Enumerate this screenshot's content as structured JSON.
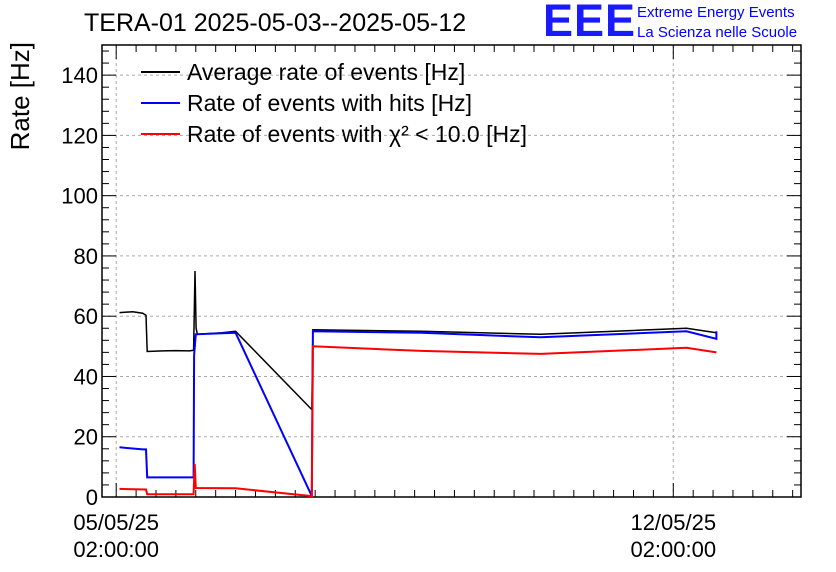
{
  "header": {
    "title": "TERA-01 2025-05-03--2025-05-12",
    "logo_text": "EEE",
    "logo_line1": "Extreme Energy Events",
    "logo_line2": "La Scienza nelle Scuole"
  },
  "chart_data": {
    "type": "line",
    "ylabel": "Rate [Hz]",
    "ylim": [
      0,
      150
    ],
    "yticks": [
      0,
      20,
      40,
      60,
      80,
      100,
      120,
      140
    ],
    "xlim": [
      "2025-05-04 21:43",
      "2025-05-13 16:31"
    ],
    "xticks": [
      {
        "date": "2025-05-05 02:00",
        "line1": "05/05/25",
        "line2": "02:00:00"
      },
      {
        "date": "2025-05-12 02:00",
        "line1": "12/05/25",
        "line2": "02:00:00"
      }
    ],
    "grid": true,
    "legend_position": "top-left",
    "series": [
      {
        "name": "Average rate of events [Hz]",
        "color": "#000000",
        "points": [
          [
            "2025-05-05 03:00",
            61.2
          ],
          [
            "2025-05-05 07:00",
            61.5
          ],
          [
            "2025-05-05 10:00",
            61.0
          ],
          [
            "2025-05-05 11:00",
            60.3
          ],
          [
            "2025-05-05 11:20",
            48.3
          ],
          [
            "2025-05-05 16:00",
            48.5
          ],
          [
            "2025-05-05 20:00",
            48.6
          ],
          [
            "2025-05-06 00:00",
            48.5
          ],
          [
            "2025-05-06 01:20",
            48.7
          ],
          [
            "2025-05-06 01:45",
            75.0
          ],
          [
            "2025-05-06 02:05",
            56.0
          ],
          [
            "2025-05-06 02:30",
            54.0
          ],
          [
            "2025-05-06 10:00",
            54.5
          ],
          [
            "2025-05-06 14:00",
            55.0
          ],
          [
            "2025-05-07 13:00",
            29.0
          ],
          [
            "2025-05-07 13:20",
            55.5
          ],
          [
            "2025-05-08 22:00",
            55.0
          ],
          [
            "2025-05-10 10:00",
            54.0
          ],
          [
            "2025-05-12 06:00",
            56.0
          ],
          [
            "2025-05-12 15:00",
            54.5
          ]
        ]
      },
      {
        "name": "Rate of events with hits [Hz]",
        "color": "#0000ff",
        "points": [
          [
            "2025-05-05 03:00",
            16.5
          ],
          [
            "2025-05-05 10:00",
            15.8
          ],
          [
            "2025-05-05 11:00",
            15.8
          ],
          [
            "2025-05-05 11:20",
            6.5
          ],
          [
            "2025-05-05 20:00",
            6.5
          ],
          [
            "2025-05-06 01:20",
            6.5
          ],
          [
            "2025-05-06 01:30",
            47.0
          ],
          [
            "2025-05-06 02:00",
            54.0
          ],
          [
            "2025-05-06 14:00",
            54.5
          ],
          [
            "2025-05-07 13:00",
            0.3
          ],
          [
            "2025-05-07 13:20",
            55.0
          ],
          [
            "2025-05-08 22:00",
            54.5
          ],
          [
            "2025-05-10 10:00",
            53.0
          ],
          [
            "2025-05-12 06:00",
            55.0
          ],
          [
            "2025-05-12 15:00",
            52.5
          ],
          [
            "2025-05-12 15:00",
            55.0
          ]
        ]
      },
      {
        "name": "Rate of events with χ² < 10.0 [Hz]",
        "color": "#ff0000",
        "points": [
          [
            "2025-05-05 03:00",
            2.7
          ],
          [
            "2025-05-05 11:00",
            2.5
          ],
          [
            "2025-05-05 11:20",
            0.9
          ],
          [
            "2025-05-06 01:20",
            0.9
          ],
          [
            "2025-05-06 01:40",
            11.0
          ],
          [
            "2025-05-06 02:00",
            3.0
          ],
          [
            "2025-05-06 14:00",
            2.9
          ],
          [
            "2025-05-07 13:00",
            0.3
          ],
          [
            "2025-05-07 13:20",
            50.0
          ],
          [
            "2025-05-08 22:00",
            48.5
          ],
          [
            "2025-05-10 10:00",
            47.5
          ],
          [
            "2025-05-12 06:00",
            49.5
          ],
          [
            "2025-05-12 15:00",
            48.0
          ]
        ]
      }
    ]
  }
}
